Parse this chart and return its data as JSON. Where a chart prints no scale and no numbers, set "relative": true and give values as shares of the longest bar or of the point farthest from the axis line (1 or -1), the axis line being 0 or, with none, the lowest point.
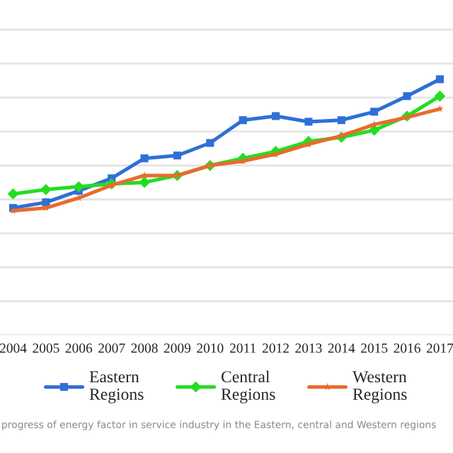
{
  "chart_data": {
    "type": "line",
    "relative": true,
    "grid": "y",
    "legend": "bottom",
    "line_style": "solid",
    "categories": [
      "2004",
      "2005",
      "2006",
      "2007",
      "2008",
      "2009",
      "2010",
      "2011",
      "2012",
      "2013",
      "2014",
      "2015",
      "2016",
      "2017"
    ],
    "series": [
      {
        "name": "Eastern\nRegions",
        "color": "#2f6fd6",
        "marker": "square",
        "values": [
          0.497,
          0.519,
          0.564,
          0.613,
          0.691,
          0.702,
          0.751,
          0.84,
          0.856,
          0.834,
          0.84,
          0.873,
          0.934,
          1.0
        ]
      },
      {
        "name": "Central\nRegions",
        "color": "#22dd22",
        "marker": "diamond",
        "values": [
          0.552,
          0.569,
          0.58,
          0.591,
          0.597,
          0.624,
          0.663,
          0.691,
          0.718,
          0.757,
          0.773,
          0.801,
          0.856,
          0.934
        ]
      },
      {
        "name": "Western\nRegions",
        "color": "#ea6a2e",
        "marker": "star",
        "values": [
          0.486,
          0.497,
          0.536,
          0.586,
          0.624,
          0.624,
          0.663,
          0.68,
          0.707,
          0.746,
          0.779,
          0.823,
          0.851,
          0.884
        ]
      }
    ],
    "annotations": [
      "progress of energy factor in service industry in the Eastern, central and Western regions"
    ]
  }
}
